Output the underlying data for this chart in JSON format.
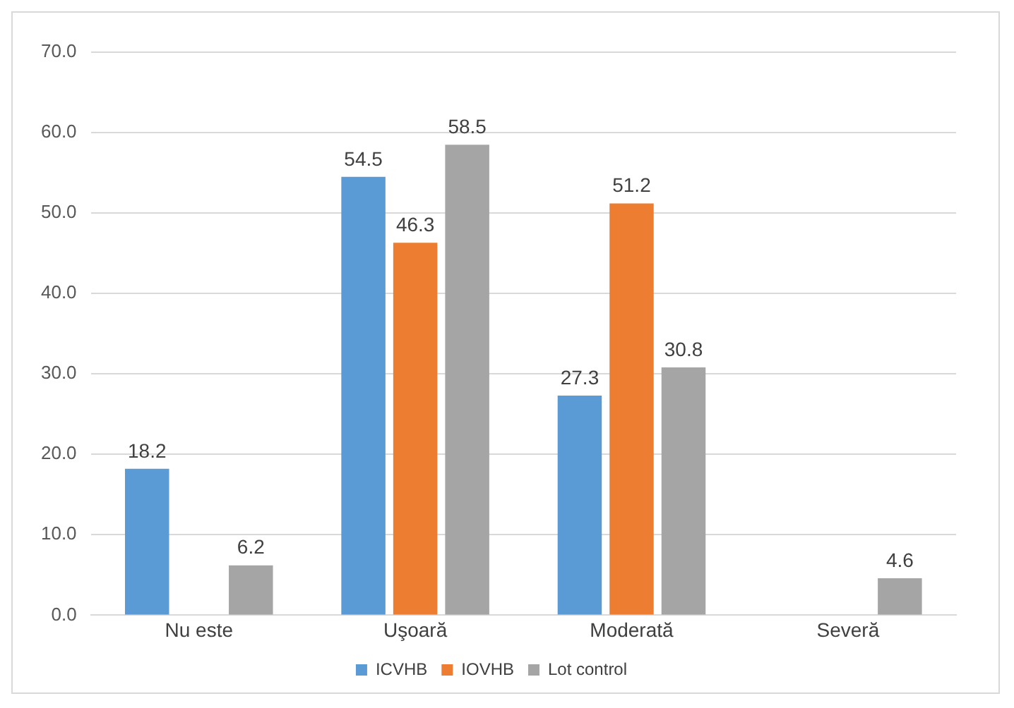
{
  "chart_data": {
    "type": "bar",
    "categories": [
      "Nu este",
      "Uşoară",
      "Moderată",
      "Severă"
    ],
    "series": [
      {
        "name": "ICVHB",
        "color": "#5b9bd5",
        "values": [
          18.2,
          54.5,
          27.3,
          null
        ]
      },
      {
        "name": "IOVHB",
        "color": "#ed7d31",
        "values": [
          null,
          46.3,
          51.2,
          null
        ]
      },
      {
        "name": "Lot control",
        "color": "#a5a5a5",
        "values": [
          6.2,
          58.5,
          30.8,
          4.6
        ]
      }
    ],
    "ylim": [
      0,
      70
    ],
    "yticks": [
      {
        "value": 0,
        "label": "0.0"
      },
      {
        "value": 10,
        "label": "10.0"
      },
      {
        "value": 20,
        "label": "20.0"
      },
      {
        "value": 30,
        "label": "30.0"
      },
      {
        "value": 40,
        "label": "40.0"
      },
      {
        "value": 50,
        "label": "50.0"
      },
      {
        "value": 60,
        "label": "60.0"
      },
      {
        "value": 70,
        "label": "70.0"
      }
    ],
    "grid": "y",
    "legend": "bottom",
    "data_labels": true
  }
}
